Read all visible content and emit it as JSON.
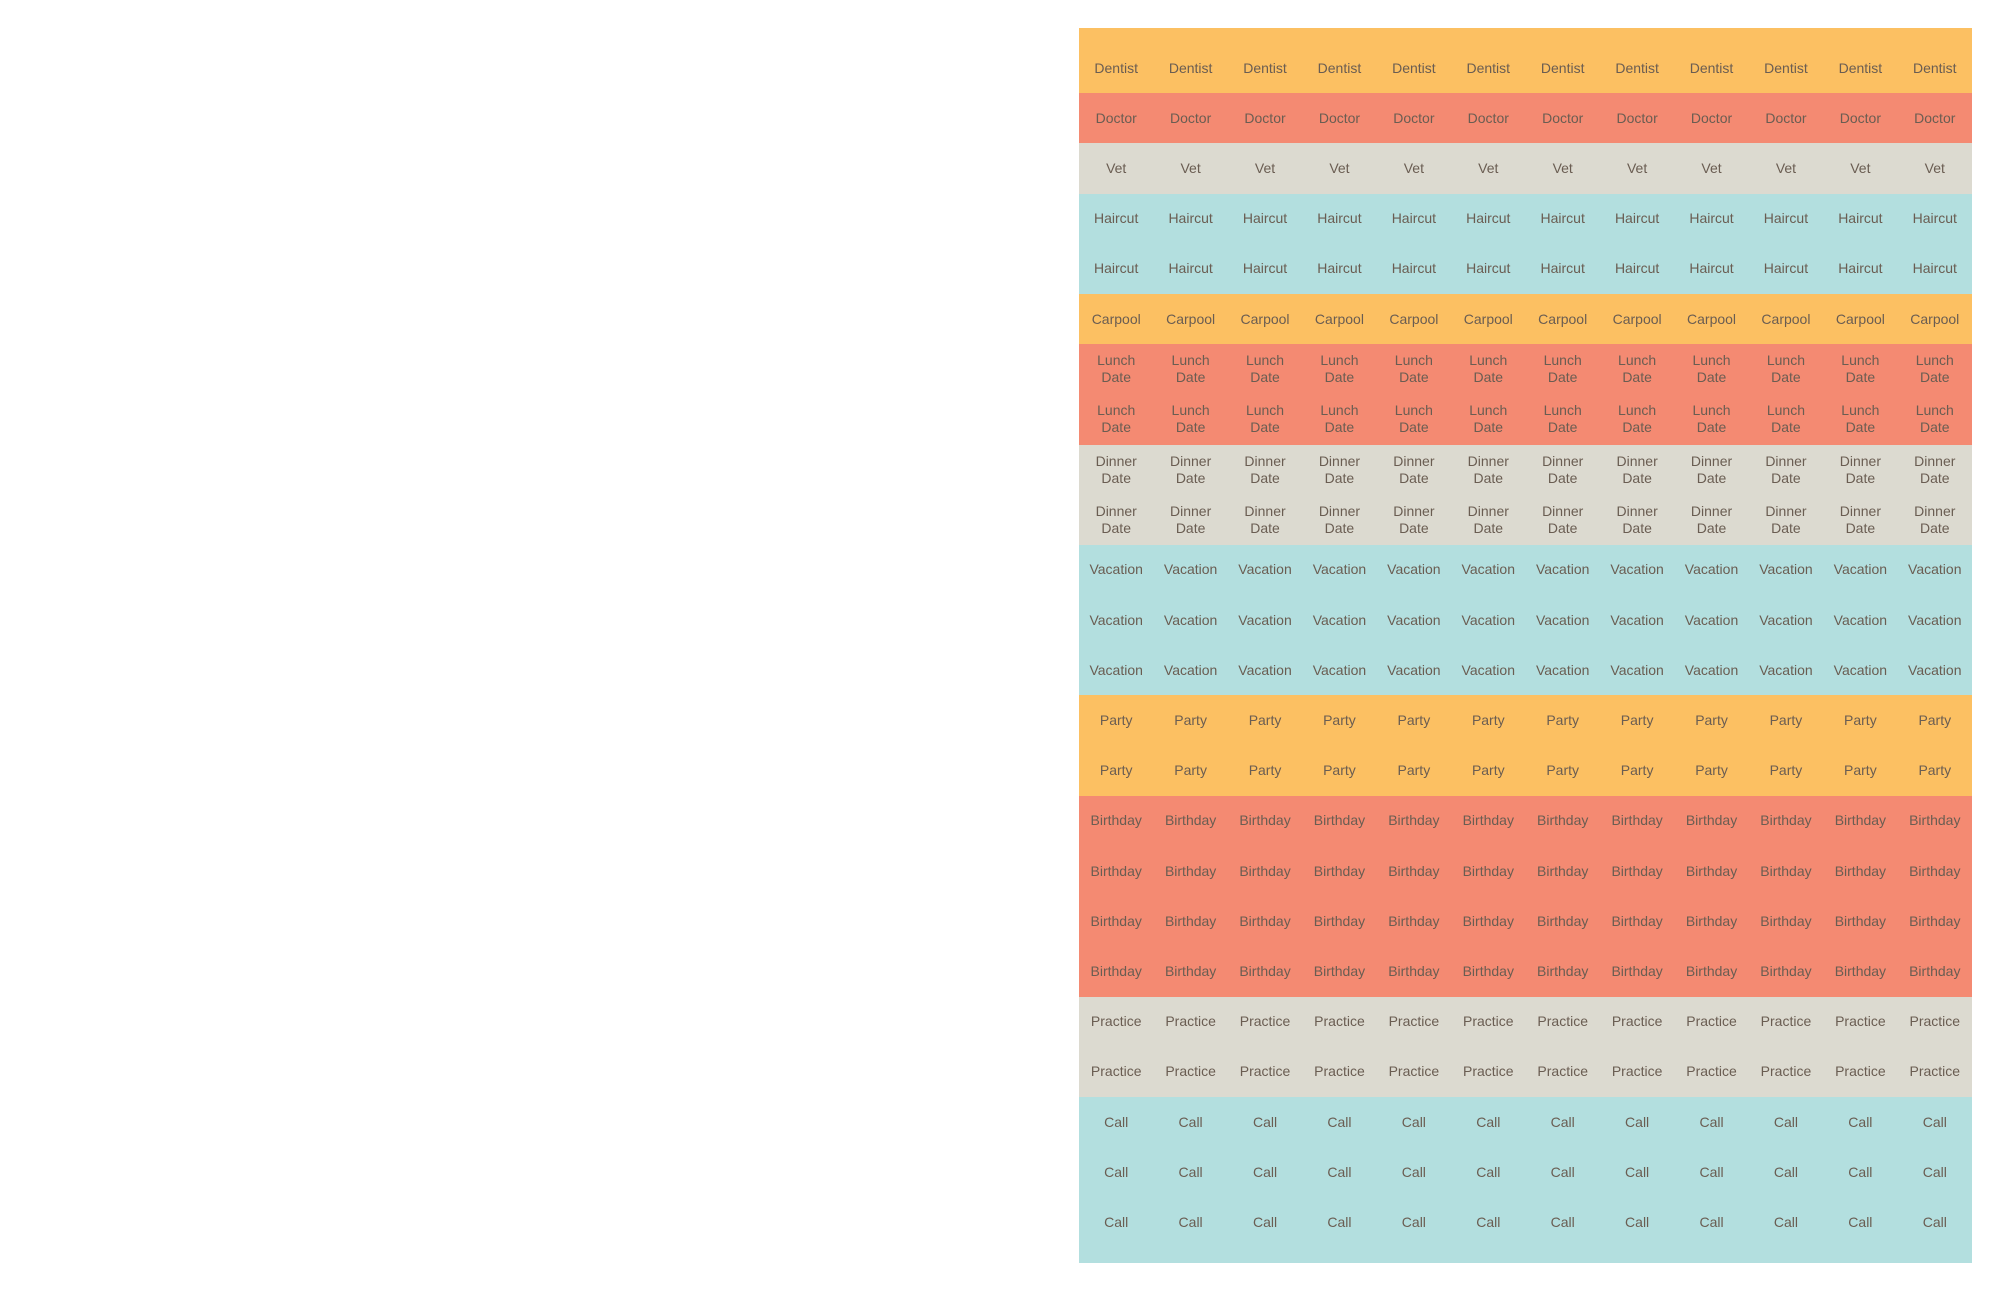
{
  "sheet": {
    "groups": [
      {
        "color": "#fcc062",
        "rows": [
          [
            "Dentist",
            "Dentist",
            "Dentist",
            "Dentist",
            "Dentist",
            "Dentist",
            "Dentist",
            "Dentist",
            "Dentist",
            "Dentist",
            "Dentist",
            "Dentist"
          ]
        ]
      },
      {
        "color": "#f48a72",
        "rows": [
          [
            "Doctor",
            "Doctor",
            "Doctor",
            "Doctor",
            "Doctor",
            "Doctor",
            "Doctor",
            "Doctor",
            "Doctor",
            "Doctor",
            "Doctor",
            "Doctor"
          ]
        ]
      },
      {
        "color": "#dcdad0",
        "rows": [
          [
            "Vet",
            "Vet",
            "Vet",
            "Vet",
            "Vet",
            "Vet",
            "Vet",
            "Vet",
            "Vet",
            "Vet",
            "Vet",
            "Vet"
          ]
        ]
      },
      {
        "color": "#b3dfdf",
        "rows": [
          [
            "Haircut",
            "Haircut",
            "Haircut",
            "Haircut",
            "Haircut",
            "Haircut",
            "Haircut",
            "Haircut",
            "Haircut",
            "Haircut",
            "Haircut",
            "Haircut"
          ],
          [
            "Haircut",
            "Haircut",
            "Haircut",
            "Haircut",
            "Haircut",
            "Haircut",
            "Haircut",
            "Haircut",
            "Haircut",
            "Haircut",
            "Haircut",
            "Haircut"
          ]
        ]
      },
      {
        "color": "#fcc062",
        "rows": [
          [
            "Carpool",
            "Carpool",
            "Carpool",
            "Carpool",
            "Carpool",
            "Carpool",
            "Carpool",
            "Carpool",
            "Carpool",
            "Carpool",
            "Carpool",
            "Carpool"
          ]
        ]
      },
      {
        "color": "#f48a72",
        "rows": [
          [
            "Lunch Date",
            "Lunch Date",
            "Lunch Date",
            "Lunch Date",
            "Lunch Date",
            "Lunch Date",
            "Lunch Date",
            "Lunch Date",
            "Lunch Date",
            "Lunch Date",
            "Lunch Date",
            "Lunch Date"
          ],
          [
            "Lunch Date",
            "Lunch Date",
            "Lunch Date",
            "Lunch Date",
            "Lunch Date",
            "Lunch Date",
            "Lunch Date",
            "Lunch Date",
            "Lunch Date",
            "Lunch Date",
            "Lunch Date",
            "Lunch Date"
          ]
        ]
      },
      {
        "color": "#dcdad0",
        "rows": [
          [
            "Dinner Date",
            "Dinner Date",
            "Dinner Date",
            "Dinner Date",
            "Dinner Date",
            "Dinner Date",
            "Dinner Date",
            "Dinner Date",
            "Dinner Date",
            "Dinner Date",
            "Dinner Date",
            "Dinner Date"
          ],
          [
            "Dinner Date",
            "Dinner Date",
            "Dinner Date",
            "Dinner Date",
            "Dinner Date",
            "Dinner Date",
            "Dinner Date",
            "Dinner Date",
            "Dinner Date",
            "Dinner Date",
            "Dinner Date",
            "Dinner Date"
          ]
        ]
      },
      {
        "color": "#b3dfdf",
        "rows": [
          [
            "Vacation",
            "Vacation",
            "Vacation",
            "Vacation",
            "Vacation",
            "Vacation",
            "Vacation",
            "Vacation",
            "Vacation",
            "Vacation",
            "Vacation",
            "Vacation"
          ],
          [
            "Vacation",
            "Vacation",
            "Vacation",
            "Vacation",
            "Vacation",
            "Vacation",
            "Vacation",
            "Vacation",
            "Vacation",
            "Vacation",
            "Vacation",
            "Vacation"
          ],
          [
            "Vacation",
            "Vacation",
            "Vacation",
            "Vacation",
            "Vacation",
            "Vacation",
            "Vacation",
            "Vacation",
            "Vacation",
            "Vacation",
            "Vacation",
            "Vacation"
          ]
        ]
      },
      {
        "color": "#fcc062",
        "rows": [
          [
            "Party",
            "Party",
            "Party",
            "Party",
            "Party",
            "Party",
            "Party",
            "Party",
            "Party",
            "Party",
            "Party",
            "Party"
          ],
          [
            "Party",
            "Party",
            "Party",
            "Party",
            "Party",
            "Party",
            "Party",
            "Party",
            "Party",
            "Party",
            "Party",
            "Party"
          ]
        ]
      },
      {
        "color": "#f48a72",
        "rows": [
          [
            "Birthday",
            "Birthday",
            "Birthday",
            "Birthday",
            "Birthday",
            "Birthday",
            "Birthday",
            "Birthday",
            "Birthday",
            "Birthday",
            "Birthday",
            "Birthday"
          ],
          [
            "Birthday",
            "Birthday",
            "Birthday",
            "Birthday",
            "Birthday",
            "Birthday",
            "Birthday",
            "Birthday",
            "Birthday",
            "Birthday",
            "Birthday",
            "Birthday"
          ],
          [
            "Birthday",
            "Birthday",
            "Birthday",
            "Birthday",
            "Birthday",
            "Birthday",
            "Birthday",
            "Birthday",
            "Birthday",
            "Birthday",
            "Birthday",
            "Birthday"
          ],
          [
            "Birthday",
            "Birthday",
            "Birthday",
            "Birthday",
            "Birthday",
            "Birthday",
            "Birthday",
            "Birthday",
            "Birthday",
            "Birthday",
            "Birthday",
            "Birthday"
          ]
        ]
      },
      {
        "color": "#dcdad0",
        "rows": [
          [
            "Practice",
            "Practice",
            "Practice",
            "Practice",
            "Practice",
            "Practice",
            "Practice",
            "Practice",
            "Practice",
            "Practice",
            "Practice",
            "Practice"
          ],
          [
            "Practice",
            "Practice",
            "Practice",
            "Practice",
            "Practice",
            "Practice",
            "Practice",
            "Practice",
            "Practice",
            "Practice",
            "Practice",
            "Practice"
          ]
        ]
      },
      {
        "color": "#b3dfdf",
        "rows": [
          [
            "Call",
            "Call",
            "Call",
            "Call",
            "Call",
            "Call",
            "Call",
            "Call",
            "Call",
            "Call",
            "Call",
            "Call"
          ],
          [
            "Call",
            "Call",
            "Call",
            "Call",
            "Call",
            "Call",
            "Call",
            "Call",
            "Call",
            "Call",
            "Call",
            "Call"
          ],
          [
            "Call",
            "Call",
            "Call",
            "Call",
            "Call",
            "Call",
            "Call",
            "Call",
            "Call",
            "Call",
            "Call",
            "Call"
          ]
        ]
      }
    ]
  }
}
